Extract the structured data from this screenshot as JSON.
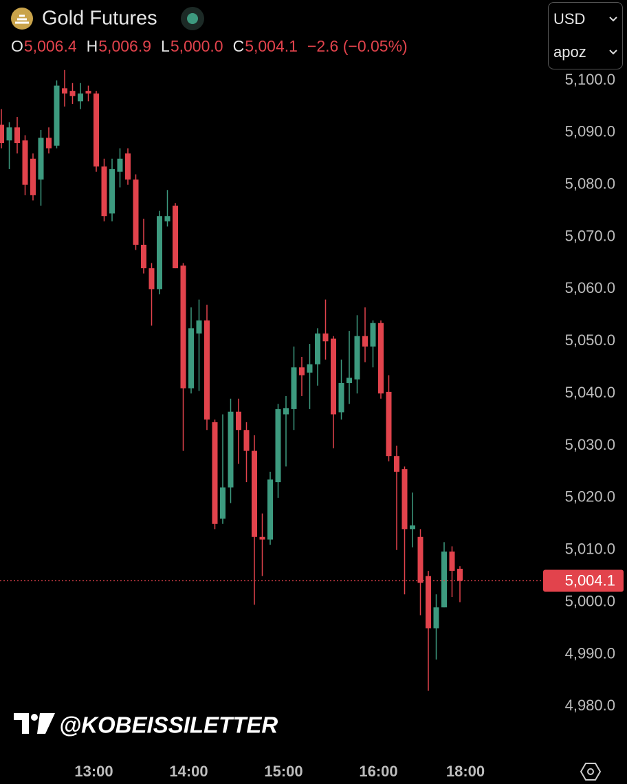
{
  "chart_data": {
    "type": "candlestick",
    "title": "Gold Futures",
    "header": {
      "labels": [
        "O",
        "H",
        "L",
        "C"
      ],
      "values": [
        "5,006.4",
        "5,006.9",
        "5,000.0",
        "5,004.1"
      ],
      "change": "−2.6 (−0.05%)"
    },
    "categories": [
      null,
      null,
      null,
      null,
      null,
      null,
      null,
      null,
      null,
      null,
      null,
      "13:00",
      null,
      null,
      null,
      null,
      null,
      null,
      null,
      null,
      null,
      null,
      null,
      "14:00",
      null,
      null,
      null,
      null,
      null,
      null,
      null,
      null,
      null,
      null,
      null,
      "15:00",
      null,
      null,
      null,
      null,
      null,
      null,
      null,
      null,
      null,
      null,
      null,
      "16:00",
      null,
      null,
      null,
      null,
      null,
      null,
      null,
      null,
      null,
      null,
      "18:00"
    ],
    "open": [
      5091.5,
      5088.5,
      5091,
      5088.5,
      5085,
      5081,
      5089,
      5087.5,
      5098.5,
      5098,
      5096,
      5098,
      5097.5,
      5083.5,
      5074.5,
      5082.5,
      5086,
      5081,
      5068.5,
      5064,
      5060,
      5073,
      5076,
      5064.5,
      5041,
      5051.5,
      5054,
      5034.5,
      5016,
      5022,
      5036.5,
      5033,
      5029,
      5012.5,
      5012,
      5023,
      5036,
      5037,
      5045,
      5044,
      5045.6,
      5051.5,
      5050.5,
      5036.4,
      5042,
      5042.7,
      5051,
      5049,
      5053.5,
      5040.3,
      5028,
      5025.5,
      5014,
      5012.5,
      5005,
      4995,
      4999,
      5009.7,
      5006.4
    ],
    "high": [
      5094.5,
      5092,
      5093,
      5089.5,
      5086,
      5090.5,
      5091,
      5100,
      5102,
      5099.5,
      5099.5,
      5099,
      5098,
      5085,
      5085,
      5087,
      5087,
      5082,
      5073.5,
      5065,
      5075,
      5079,
      5076.5,
      5065,
      5056.5,
      5058,
      5057,
      5035,
      5036,
      5039,
      5039,
      5034.5,
      5032,
      5017,
      5025,
      5038,
      5039.5,
      5049,
      5047,
      5049.5,
      5052.5,
      5058,
      5051,
      5046.5,
      5052,
      5055,
      5056.5,
      5054,
      5054,
      5043.5,
      5030,
      5026,
      5021,
      5014,
      5006,
      5001.5,
      5011.5,
      5010.7,
      5006.9
    ],
    "low": [
      5087,
      5083,
      5086,
      5078,
      5077,
      5076,
      5086,
      5087,
      5095,
      5095.5,
      5094.5,
      5096,
      5082.5,
      5073,
      5073,
      5079.5,
      5080,
      5067.5,
      5063,
      5053,
      5059,
      5072,
      5064,
      5029,
      5040,
      5040.5,
      5033,
      5014,
      5015,
      5019,
      5026.5,
      5023,
      4999.5,
      5005,
      5011,
      5020,
      5026,
      5033,
      5039.5,
      5037,
      5041.5,
      5046.5,
      5029.5,
      5035,
      5038,
      5040,
      5046,
      5045,
      5039,
      5027,
      5010,
      5001.5,
      5010.5,
      4997.5,
      4983,
      4989,
      4999,
      5001,
      5000.0
    ],
    "close": [
      5088,
      5091,
      5088,
      5080,
      5078,
      5089,
      5087,
      5099,
      5097.5,
      5097,
      5097.5,
      5097.5,
      5083.5,
      5074,
      5083,
      5085,
      5081,
      5068.5,
      5064,
      5060,
      5074,
      5074,
      5064,
      5041,
      5052.5,
      5054,
      5035,
      5015,
      5022,
      5036.5,
      5033,
      5029,
      5012.5,
      5012,
      5023.5,
      5037,
      5037.2,
      5045,
      5043.5,
      5045.6,
      5051.5,
      5050,
      5036,
      5042,
      5043,
      5051,
      5049,
      5053.5,
      5040,
      5028,
      5025,
      5014,
      5014.7,
      5003.7,
      4995,
      4999,
      5009.7,
      5006,
      5004.1
    ],
    "up_color": "#3d9a7f",
    "down_color": "#e2434c",
    "ylim": [
      4972,
      5102.5
    ],
    "yticks": [
      {
        "value": 4980,
        "label": "4,980.0"
      },
      {
        "value": 4990,
        "label": "4,990.0"
      },
      {
        "value": 5000,
        "label": "5,000.0"
      },
      {
        "value": 5010,
        "label": "5,010.0"
      },
      {
        "value": 5020,
        "label": "5,020.0"
      },
      {
        "value": 5030,
        "label": "5,030.0"
      },
      {
        "value": 5040,
        "label": "5,040.0"
      },
      {
        "value": 5050,
        "label": "5,050.0"
      },
      {
        "value": 5060,
        "label": "5,060.0"
      },
      {
        "value": 5070,
        "label": "5,070.0"
      },
      {
        "value": 5080,
        "label": "5,080.0"
      },
      {
        "value": 5090,
        "label": "5,090.0"
      },
      {
        "value": 5100,
        "label": "5,100.0"
      }
    ],
    "last_price": {
      "value": 5004.1,
      "label": "5,004.1"
    }
  },
  "toolbar": {
    "currency": "USD",
    "unit": "apoz"
  },
  "watermark": "@KOBEISSILETTER"
}
